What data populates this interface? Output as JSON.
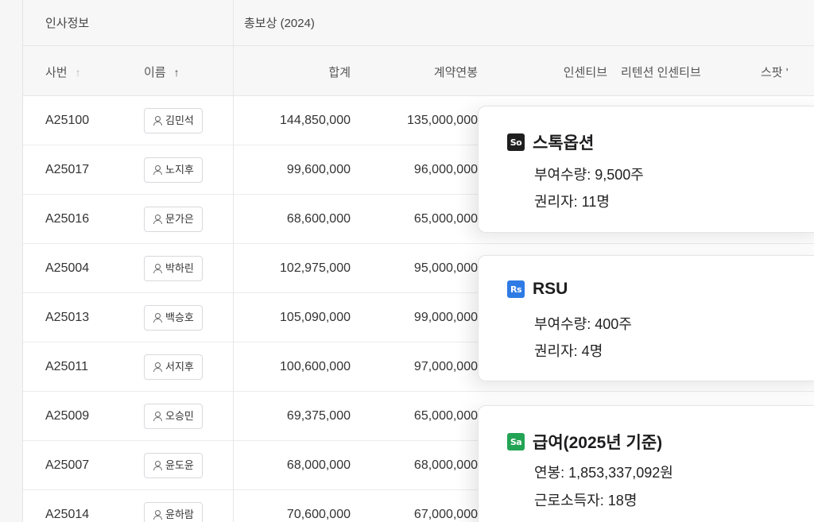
{
  "table": {
    "group_headers": {
      "hr_info": "인사정보",
      "total_comp": "총보상 (2024)"
    },
    "columns": {
      "emp_no": "사번",
      "name": "이름",
      "total": "합계",
      "contract_salary": "계약연봉",
      "incentive": "인센티브",
      "retention_incentive": "리텐션 인센티브",
      "stock": "스팟 '"
    },
    "sort_arrow": "↑",
    "rows": [
      {
        "id": "A25100",
        "name": "김민석",
        "total": "144,850,000",
        "salary": "135,000,000"
      },
      {
        "id": "A25017",
        "name": "노지후",
        "total": "99,600,000",
        "salary": "96,000,000"
      },
      {
        "id": "A25016",
        "name": "문가은",
        "total": "68,600,000",
        "salary": "65,000,000"
      },
      {
        "id": "A25004",
        "name": "박하린",
        "total": "102,975,000",
        "salary": "95,000,000"
      },
      {
        "id": "A25013",
        "name": "백승호",
        "total": "105,090,000",
        "salary": "99,000,000"
      },
      {
        "id": "A25011",
        "name": "서지후",
        "total": "100,600,000",
        "salary": "97,000,000"
      },
      {
        "id": "A25009",
        "name": "오승민",
        "total": "69,375,000",
        "salary": "65,000,000"
      },
      {
        "id": "A25007",
        "name": "윤도윤",
        "total": "68,000,000",
        "salary": "68,000,000"
      },
      {
        "id": "A25014",
        "name": "윤하람",
        "total": "70,600,000",
        "salary": "67,000,000"
      }
    ]
  },
  "cards": {
    "stock_option": {
      "badge": "So",
      "title": "스톡옵션",
      "line1": "부여수량: 9,500주",
      "line2": "권리자: 11명",
      "color": "#1f1f1f"
    },
    "rsu": {
      "badge": "Rs",
      "title": "RSU",
      "line1": "부여수량: 400주",
      "line2": "권리자: 4명",
      "color": "#2f7be5"
    },
    "salary": {
      "badge": "Sa",
      "title": "급여(2025년 기준)",
      "line1": "연봉: 1,853,337,092원",
      "line2": "근로소득자: 18명",
      "color": "#23a455"
    }
  }
}
